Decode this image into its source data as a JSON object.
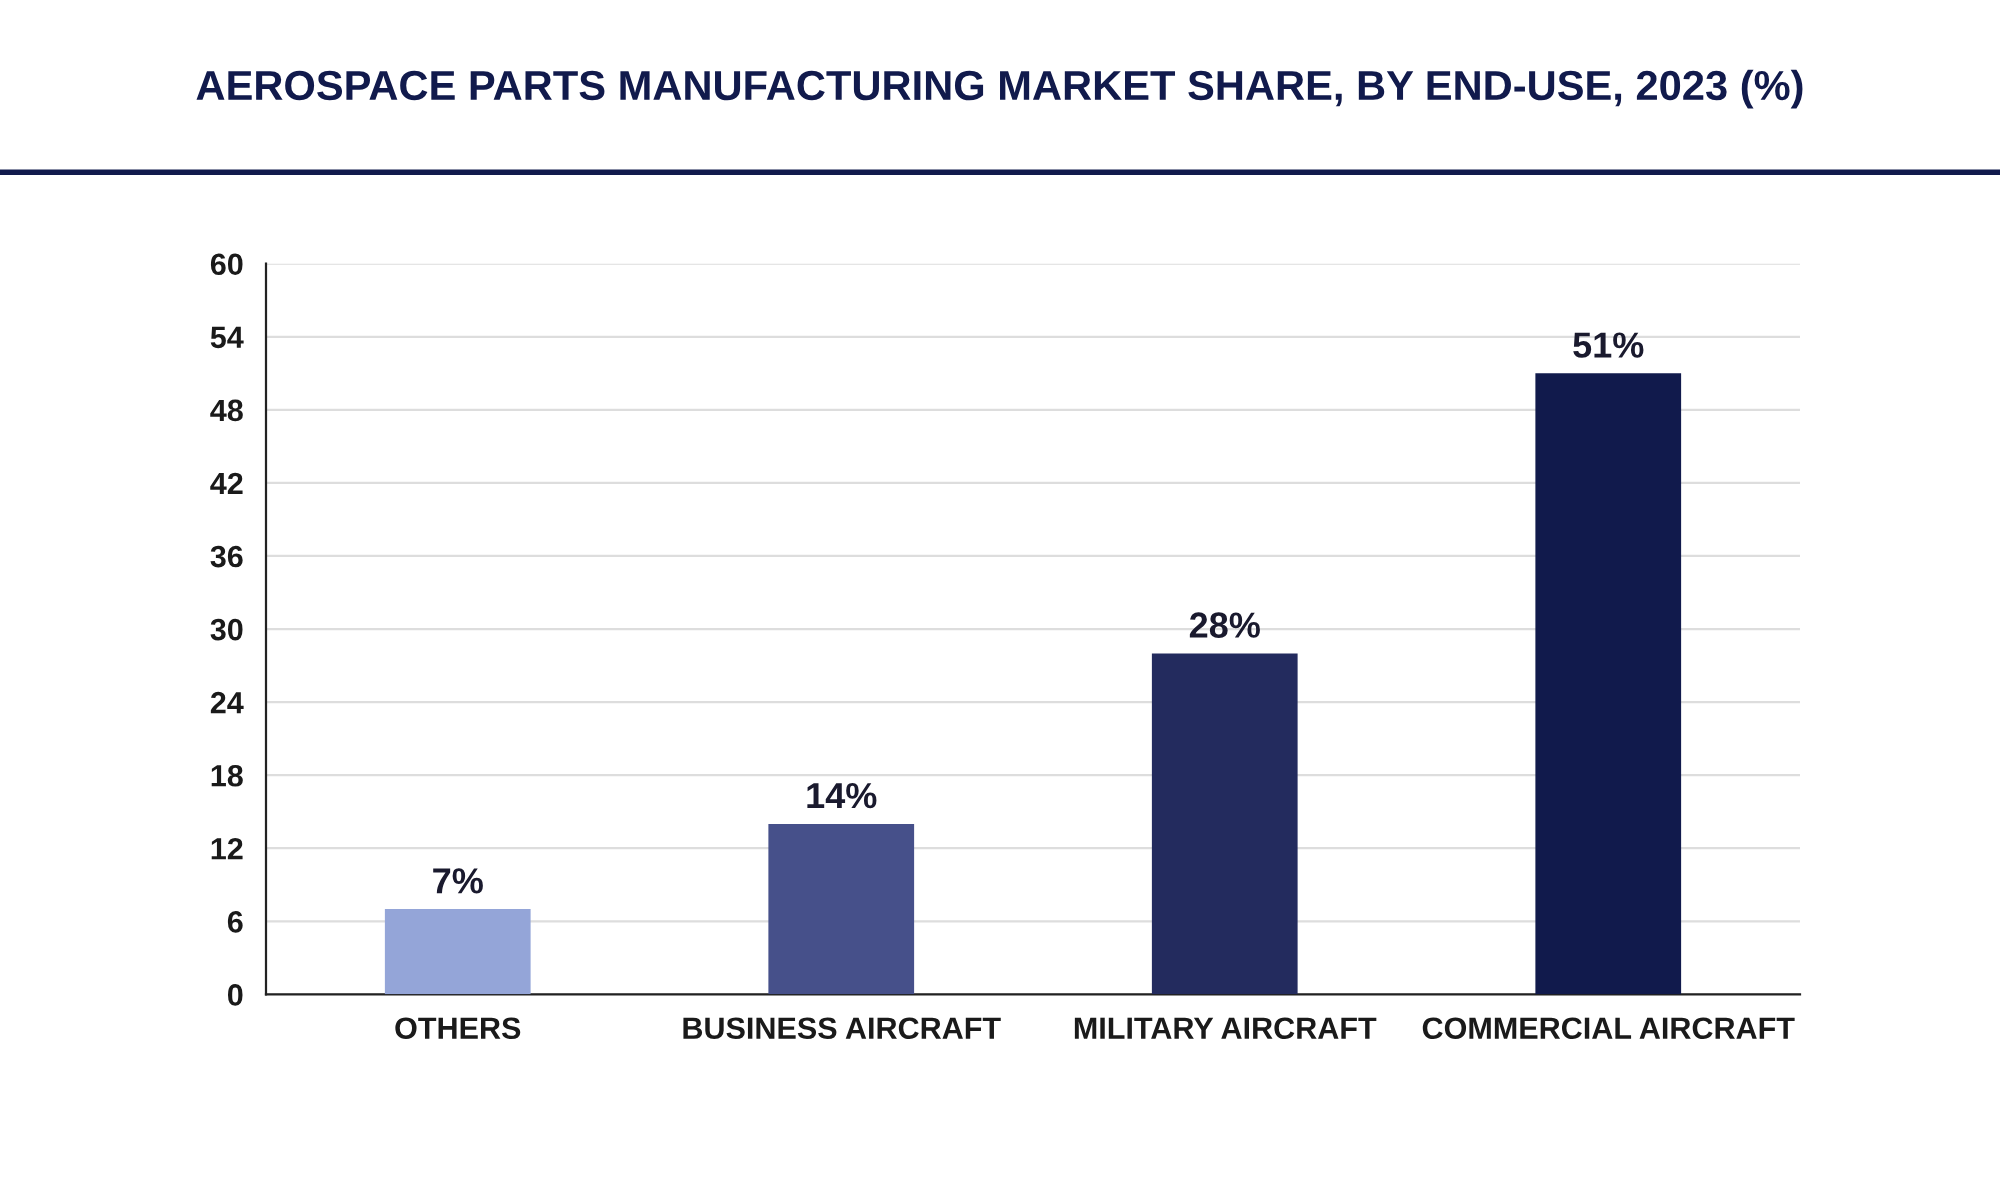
{
  "chart_data": {
    "type": "bar",
    "title": "AEROSPACE PARTS MANUFACTURING MARKET SHARE, BY END-USE, 2023 (%)",
    "categories": [
      "OTHERS",
      "BUSINESS AIRCRAFT",
      "MILITARY AIRCRAFT",
      "COMMERCIAL AIRCRAFT"
    ],
    "values": [
      7,
      14,
      28,
      51
    ],
    "colors": [
      "#94a5d8",
      "#46508a",
      "#232b5e",
      "#111a4c"
    ],
    "value_labels": [
      "7%",
      "14%",
      "28%",
      "51%"
    ],
    "ylim": [
      0,
      60
    ],
    "yticks": [
      0,
      6,
      12,
      18,
      24,
      30,
      36,
      42,
      48,
      54,
      60
    ],
    "grid": "y"
  }
}
